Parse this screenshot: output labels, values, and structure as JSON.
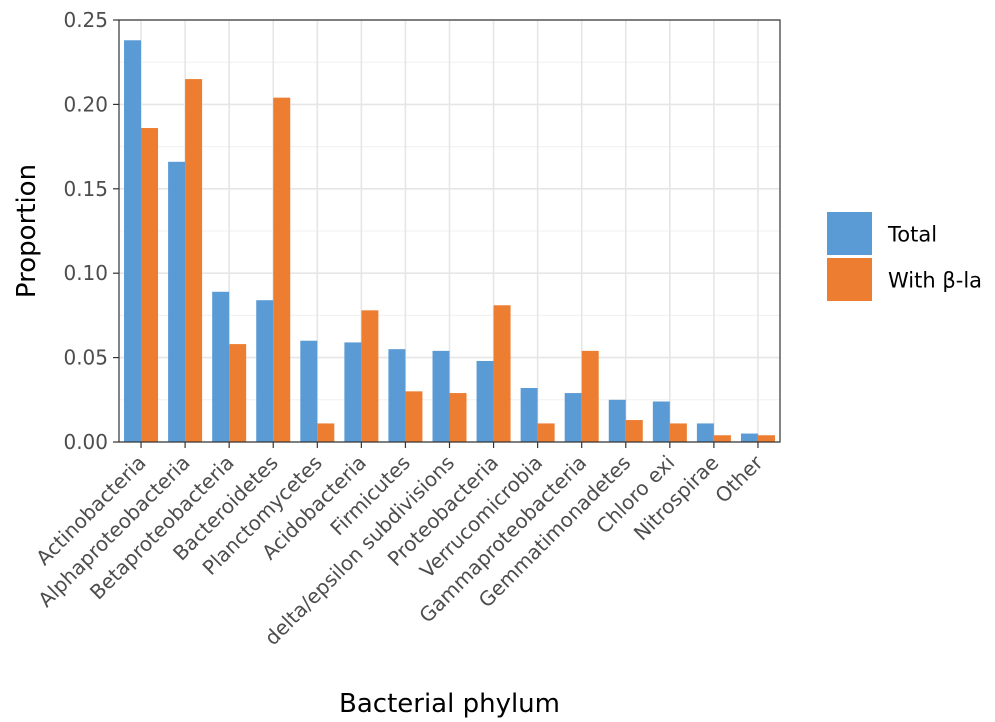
{
  "chart_data": {
    "type": "bar",
    "xlabel": "Bacterial phylum",
    "ylabel": "Proportion",
    "ylim": [
      0,
      0.25
    ],
    "yticks": [
      0.0,
      0.05,
      0.1,
      0.15,
      0.2,
      0.25
    ],
    "ytick_labels": [
      "0.00",
      "0.05",
      "0.10",
      "0.15",
      "0.20",
      "0.25"
    ],
    "grid": true,
    "legend_position": "right",
    "categories": [
      "Actinobacteria",
      "Alphaproteobacteria",
      "Betaproteobacteria",
      "Bacteroidetes",
      "Planctomycetes",
      "Acidobacteria",
      "Firmicutes",
      "delta/epsilon subdivisions",
      "Proteobacteria",
      "Verrucomicrobia",
      "Gammaproteobacteria",
      "Gemmatimonadetes",
      "Chloro exi",
      "Nitrospirae",
      "Other"
    ],
    "series": [
      {
        "name": "Total",
        "color": "#5b9bd5",
        "values": [
          0.238,
          0.166,
          0.089,
          0.084,
          0.06,
          0.059,
          0.055,
          0.054,
          0.048,
          0.032,
          0.029,
          0.025,
          0.024,
          0.011,
          0.005
        ]
      },
      {
        "name": "With β-la",
        "color": "#ed7d31",
        "values": [
          0.186,
          0.215,
          0.058,
          0.204,
          0.011,
          0.078,
          0.03,
          0.029,
          0.081,
          0.011,
          0.054,
          0.013,
          0.011,
          0.004,
          0.004
        ]
      }
    ]
  }
}
